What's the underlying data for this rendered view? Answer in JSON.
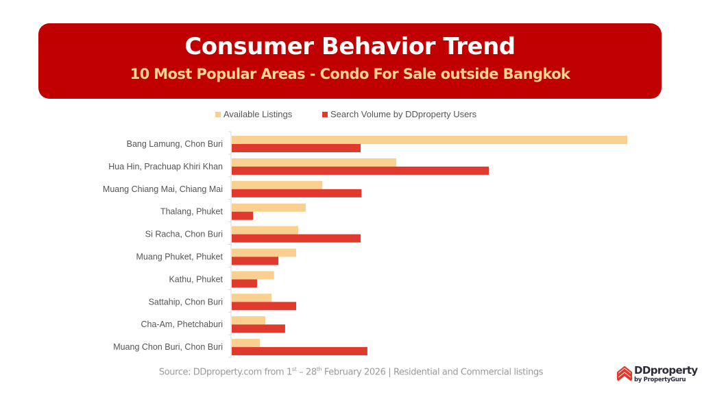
{
  "header": {
    "title": "Consumer Behavior Trend",
    "subtitle": "10 Most Popular Areas - Condo For Sale outside Bangkok"
  },
  "colors": {
    "header_bg": "#c00000",
    "subtitle": "#ffd28f",
    "listings": "#f9d08f",
    "search": "#e0392d"
  },
  "chart_data": {
    "type": "bar",
    "orientation": "horizontal",
    "title": "10 Most Popular Areas - Condo For Sale outside Bangkok",
    "xlabel": "",
    "ylabel": "",
    "value_unit": "relative index (no axis scale shown; longest bar = 100)",
    "xlim": [
      0,
      100
    ],
    "grid": false,
    "legend_position": "top",
    "categories": [
      "Bang Lamung, Chon Buri",
      "Hua Hin, Prachuap Khiri Khan",
      "Muang Chiang Mai, Chiang Mai",
      "Thalang, Phuket",
      "Si Racha, Chon Buri",
      "Muang Phuket, Phuket",
      "Kathu, Phuket",
      "Sattahip, Chon Buri",
      "Cha-Am, Phetchaburi",
      "Muang Chon Buri, Chon Buri"
    ],
    "series": [
      {
        "name": "Available Listings",
        "values": [
          100,
          41.6,
          22.9,
          18.7,
          16.8,
          16.3,
          10.7,
          10.1,
          8.5,
          7.1
        ]
      },
      {
        "name": "Search Volume by DDproperty Users",
        "values": [
          32.6,
          65.0,
          32.8,
          5.4,
          32.6,
          11.8,
          6.4,
          16.3,
          13.5,
          34.3
        ]
      }
    ]
  },
  "footer": {
    "source_prefix": "Source: DDproperty.com from 1",
    "source_sup1": "st",
    "source_mid": "  – 28",
    "source_sup2": "th",
    "source_suffix": " February 2026 | Residential and Commercial listings"
  },
  "logo": {
    "name": "DDproperty",
    "byline": "by PropertyGuru",
    "icon": "house-stack-icon"
  }
}
